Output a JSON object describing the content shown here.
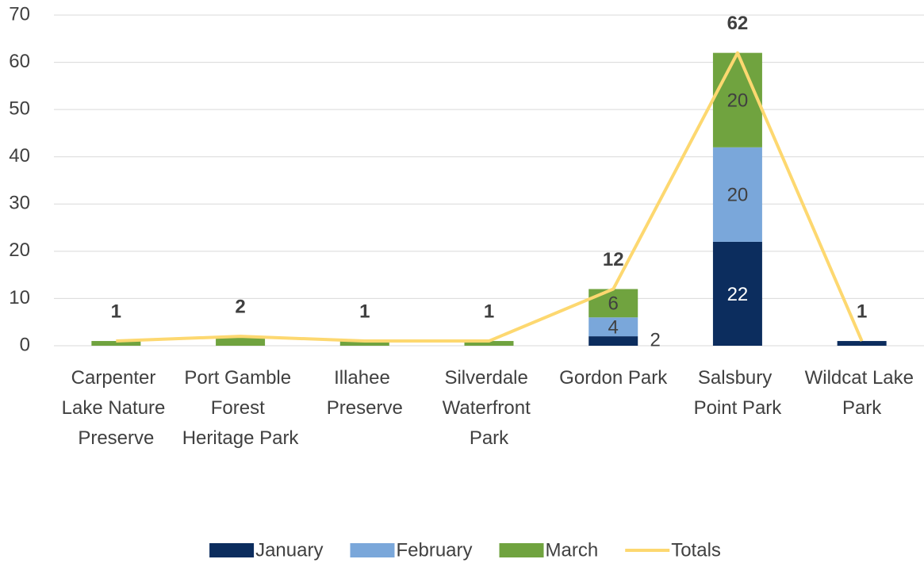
{
  "chart_data": {
    "type": "bar_line",
    "categories": [
      "Carpenter Lake Nature Preserve",
      "Port Gamble Forest Heritage Park",
      "Illahee Preserve",
      "Silverdale Waterfront Park",
      "Gordon Park",
      "Salsbury Point Park",
      "Wildcat Lake Park"
    ],
    "series": [
      {
        "name": "January",
        "type": "bar",
        "color": "#0c2d5e",
        "label_color": "#ffffff",
        "values": [
          0,
          0,
          0,
          0,
          2,
          22,
          1
        ],
        "value_labels": [
          null,
          null,
          null,
          null,
          "2",
          "22",
          null
        ]
      },
      {
        "name": "February",
        "type": "bar",
        "color": "#7aa7da",
        "label_color": "#404040",
        "values": [
          0,
          0,
          0,
          0,
          4,
          20,
          0
        ],
        "value_labels": [
          null,
          null,
          null,
          null,
          "4",
          "20",
          null
        ]
      },
      {
        "name": "March",
        "type": "bar",
        "color": "#70a33f",
        "label_color": "#404040",
        "values": [
          1,
          2,
          1,
          1,
          6,
          20,
          0
        ],
        "value_labels": [
          null,
          null,
          null,
          null,
          "6",
          "20",
          null
        ]
      },
      {
        "name": "Totals",
        "type": "line",
        "color": "#fdd870",
        "values": [
          1,
          2,
          1,
          1,
          12,
          62,
          1
        ],
        "value_labels": [
          "1",
          "2",
          "1",
          "1",
          "12",
          "62",
          "1"
        ]
      }
    ],
    "ylim": [
      0,
      70
    ],
    "yticks": [
      0,
      10,
      20,
      30,
      40,
      50,
      60,
      70
    ],
    "grid": true,
    "stacked": true,
    "legend": "bottom"
  }
}
